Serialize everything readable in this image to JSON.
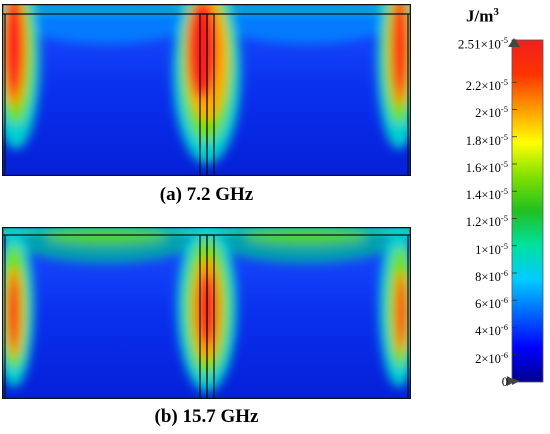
{
  "panels": [
    {
      "id": "a",
      "caption": "(a) 7.2 GHz"
    },
    {
      "id": "b",
      "caption": "(b) 15.7 GHz"
    }
  ],
  "colorbar": {
    "unit": "J/m",
    "unit_exponent": "3",
    "min": 0,
    "max": 2.51e-05,
    "ticks": [
      {
        "label": "2.51×10",
        "exp": "-5",
        "value": 2.51e-05
      },
      {
        "label": "2.2×10",
        "exp": "-5",
        "value": 2.2e-05
      },
      {
        "label": "2×10",
        "exp": "-5",
        "value": 2e-05
      },
      {
        "label": "1.8×10",
        "exp": "-5",
        "value": 1.8e-05
      },
      {
        "label": "1.6×10",
        "exp": "-5",
        "value": 1.6e-05
      },
      {
        "label": "1.4×10",
        "exp": "-5",
        "value": 1.4e-05
      },
      {
        "label": "1.2×10",
        "exp": "-5",
        "value": 1.2e-05
      },
      {
        "label": "1×10",
        "exp": "-5",
        "value": 1e-05
      },
      {
        "label": "8×10",
        "exp": "-6",
        "value": 8e-06
      },
      {
        "label": "6×10",
        "exp": "-6",
        "value": 6e-06
      },
      {
        "label": "4×10",
        "exp": "-6",
        "value": 4e-06
      },
      {
        "label": "2×10",
        "exp": "-6",
        "value": 2e-06
      },
      {
        "label": "0",
        "exp": "",
        "value": 0
      }
    ],
    "colors": [
      "#00008f",
      "#0000ff",
      "#0066ff",
      "#00ccff",
      "#00e0a0",
      "#20c020",
      "#80e000",
      "#ffff00",
      "#ff9900",
      "#ff3300",
      "#ee2020"
    ]
  }
}
